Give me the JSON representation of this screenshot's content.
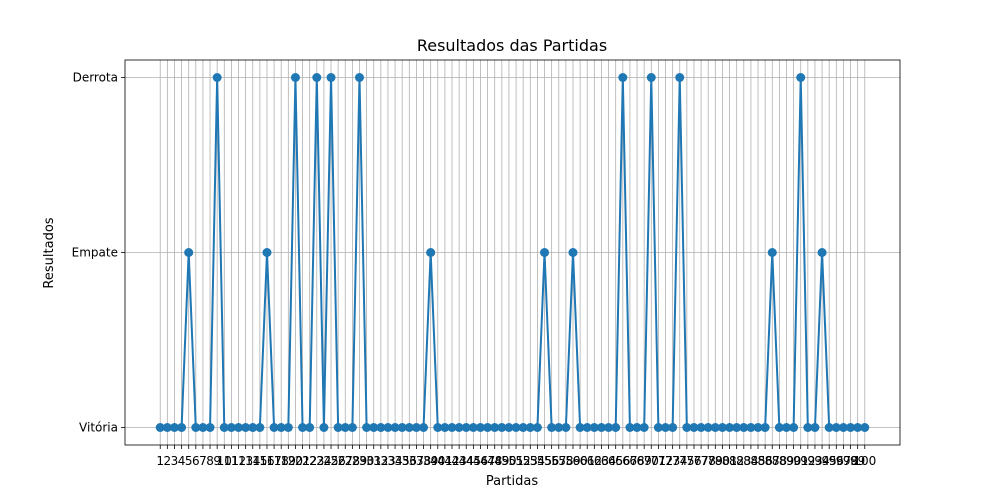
{
  "chart_data": {
    "type": "line",
    "title": "Resultados das Partidas",
    "xlabel": "Partidas",
    "ylabel": "Resultados",
    "x": [
      1,
      2,
      3,
      4,
      5,
      6,
      7,
      8,
      9,
      10,
      11,
      12,
      13,
      14,
      15,
      16,
      17,
      18,
      19,
      20,
      21,
      22,
      23,
      24,
      25,
      26,
      27,
      28,
      29,
      30,
      31,
      32,
      33,
      34,
      35,
      36,
      37,
      38,
      39,
      40,
      41,
      42,
      43,
      44,
      45,
      46,
      47,
      48,
      49,
      50,
      51,
      52,
      53,
      54,
      55,
      56,
      57,
      58,
      59,
      60,
      61,
      62,
      63,
      64,
      65,
      66,
      67,
      68,
      69,
      70,
      71,
      72,
      73,
      74,
      75,
      76,
      77,
      78,
      79,
      80,
      81,
      82,
      83,
      84,
      85,
      86,
      87,
      88,
      89,
      90,
      91,
      92,
      93,
      94,
      95,
      96,
      97,
      98,
      99,
      100
    ],
    "y_categories": [
      "Vitória",
      "Empate",
      "Derrota"
    ],
    "series": [
      {
        "values": [
          "Vitória",
          "Vitória",
          "Vitória",
          "Vitória",
          "Empate",
          "Vitória",
          "Vitória",
          "Vitória",
          "Derrota",
          "Vitória",
          "Vitória",
          "Vitória",
          "Vitória",
          "Vitória",
          "Vitória",
          "Empate",
          "Vitória",
          "Vitória",
          "Vitória",
          "Derrota",
          "Vitória",
          "Vitória",
          "Derrota",
          "Vitória",
          "Derrota",
          "Vitória",
          "Vitória",
          "Vitória",
          "Derrota",
          "Vitória",
          "Vitória",
          "Vitória",
          "Vitória",
          "Vitória",
          "Vitória",
          "Vitória",
          "Vitória",
          "Vitória",
          "Empate",
          "Vitória",
          "Vitória",
          "Vitória",
          "Vitória",
          "Vitória",
          "Vitória",
          "Vitória",
          "Vitória",
          "Vitória",
          "Vitória",
          "Vitória",
          "Vitória",
          "Vitória",
          "Vitória",
          "Vitória",
          "Empate",
          "Vitória",
          "Vitória",
          "Vitória",
          "Empate",
          "Vitória",
          "Vitória",
          "Vitória",
          "Vitória",
          "Vitória",
          "Vitória",
          "Derrota",
          "Vitória",
          "Vitória",
          "Vitória",
          "Derrota",
          "Vitória",
          "Vitória",
          "Vitória",
          "Derrota",
          "Vitória",
          "Vitória",
          "Vitória",
          "Vitória",
          "Vitória",
          "Vitória",
          "Vitória",
          "Vitória",
          "Vitória",
          "Vitória",
          "Vitória",
          "Vitória",
          "Empate",
          "Vitória",
          "Vitória",
          "Vitória",
          "Derrota",
          "Vitória",
          "Vitória",
          "Empate",
          "Vitória",
          "Vitória",
          "Vitória",
          "Vitória",
          "Vitória",
          "Vitória"
        ],
        "color": "#1f77b4",
        "marker": "circle"
      }
    ],
    "grid": true,
    "legend": "none"
  }
}
